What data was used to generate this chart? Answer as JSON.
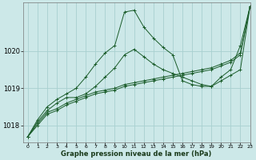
{
  "title": "Graphe pression niveau de la mer (hPa)",
  "bg_color": "#cce8e8",
  "grid_color": "#a8d0d0",
  "line_color": "#1a5c2a",
  "xlim": [
    -0.5,
    23
  ],
  "ylim": [
    1017.55,
    1021.3
  ],
  "yticks": [
    1018,
    1019,
    1020
  ],
  "xtick_labels": [
    "0",
    "1",
    "2",
    "3",
    "4",
    "5",
    "6",
    "7",
    "8",
    "9",
    "10",
    "11",
    "12",
    "13",
    "14",
    "15",
    "16",
    "17",
    "18",
    "19",
    "20",
    "21",
    "22",
    "23"
  ],
  "series": [
    [
      1017.7,
      1018.0,
      1018.3,
      1018.4,
      1018.55,
      1018.65,
      1018.75,
      1018.85,
      1018.9,
      1018.95,
      1019.05,
      1019.1,
      1019.15,
      1019.2,
      1019.25,
      1019.3,
      1019.35,
      1019.4,
      1019.45,
      1019.5,
      1019.6,
      1019.7,
      1019.9,
      1021.2
    ],
    [
      1017.7,
      1018.05,
      1018.35,
      1018.45,
      1018.6,
      1018.7,
      1018.8,
      1018.9,
      1018.95,
      1019.0,
      1019.1,
      1019.15,
      1019.2,
      1019.25,
      1019.3,
      1019.35,
      1019.4,
      1019.45,
      1019.5,
      1019.55,
      1019.65,
      1019.75,
      1019.95,
      1021.2
    ],
    [
      1017.7,
      1018.1,
      1018.4,
      1018.6,
      1018.75,
      1018.75,
      1018.85,
      1019.05,
      1019.3,
      1019.55,
      1019.9,
      1020.05,
      1019.85,
      1019.65,
      1019.5,
      1019.4,
      1019.3,
      1019.2,
      1019.1,
      1019.05,
      1019.2,
      1019.35,
      1019.5,
      1021.2
    ],
    [
      1017.7,
      1018.15,
      1018.5,
      1018.7,
      1018.85,
      1019.0,
      1019.3,
      1019.65,
      1019.95,
      1020.15,
      1021.05,
      1021.1,
      1020.65,
      1020.35,
      1020.1,
      1019.9,
      1019.2,
      1019.1,
      1019.05,
      1019.05,
      1019.3,
      1019.5,
      1020.15,
      1021.2
    ]
  ]
}
